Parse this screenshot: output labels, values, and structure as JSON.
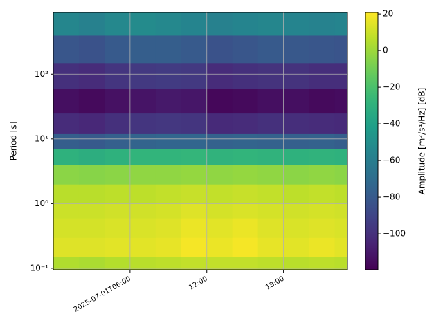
{
  "chart_data": {
    "type": "heatmap",
    "y_label": "Period [s]",
    "colorbar_label": "Amplitude [m²/s⁴/Hz] [dB]",
    "colormap": "viridis",
    "log_y": true,
    "grid": true,
    "x_bins": [
      "2025-07-01T00:00",
      "2025-07-01T02:00",
      "2025-07-01T04:00",
      "2025-07-01T06:00",
      "2025-07-01T08:00",
      "2025-07-01T10:00",
      "2025-07-01T12:00",
      "2025-07-01T14:00",
      "2025-07-01T16:00",
      "2025-07-01T18:00",
      "2025-07-01T20:00",
      "2025-07-01T22:00",
      "2025-07-01T23:00"
    ],
    "y_bins": [
      0.095,
      0.15,
      0.3,
      0.6,
      1,
      2,
      4,
      7,
      12,
      25,
      60,
      150,
      400,
      900
    ],
    "z": [
      [
        4,
        3,
        5,
        6,
        7,
        8,
        8,
        8,
        7,
        6,
        7,
        6
      ],
      [
        14,
        14,
        15,
        15,
        16,
        19,
        17,
        19,
        16,
        15,
        17,
        15
      ],
      [
        12,
        12,
        13,
        13,
        14,
        17,
        15,
        17,
        14,
        13,
        14,
        13
      ],
      [
        10,
        10,
        11,
        11,
        12,
        14,
        12,
        13,
        12,
        11,
        12,
        11
      ],
      [
        6,
        6,
        7,
        7,
        8,
        9,
        8,
        9,
        8,
        7,
        8,
        7
      ],
      [
        -4,
        -5,
        -4,
        -3,
        -3,
        -2,
        -3,
        -2,
        -3,
        -4,
        -3,
        -4
      ],
      [
        -30,
        -32,
        -30,
        -28,
        -28,
        -27,
        -29,
        -28,
        -29,
        -30,
        -29,
        -30
      ],
      [
        -78,
        -80,
        -77,
        -75,
        -74,
        -74,
        -76,
        -75,
        -76,
        -77,
        -76,
        -78
      ],
      [
        -102,
        -104,
        -100,
        -98,
        -97,
        -98,
        -103,
        -102,
        -100,
        -101,
        -102,
        -103
      ],
      [
        -114,
        -116,
        -113,
        -112,
        -110,
        -111,
        -117,
        -116,
        -114,
        -114,
        -116,
        -115
      ],
      [
        -100,
        -102,
        -98,
        -96,
        -95,
        -96,
        -102,
        -100,
        -99,
        -99,
        -101,
        -101
      ],
      [
        -82,
        -84,
        -80,
        -78,
        -78,
        -80,
        -84,
        -82,
        -80,
        -81,
        -82,
        -83
      ],
      [
        -55,
        -58,
        -54,
        -52,
        -54,
        -56,
        -58,
        -56,
        -55,
        -56,
        -57,
        -56
      ]
    ],
    "xlim": [
      "2025-07-01T00:00",
      "2025-07-01T23:00"
    ],
    "xticks": [
      "2025-07-01T06:00",
      {
        "value": "2025-07-01T12:00",
        "label": "12:00"
      },
      {
        "value": "2025-07-01T18:00",
        "label": "18:00"
      }
    ],
    "ylim": [
      0.095,
      900
    ],
    "yticks": [
      {
        "value": 0.1,
        "label": "10⁻¹"
      },
      {
        "value": 1,
        "label": "10⁰"
      },
      {
        "value": 10,
        "label": "10¹"
      },
      {
        "value": 100,
        "label": "10²"
      }
    ],
    "clim": [
      -119.6,
      20.8
    ],
    "cticks": [
      {
        "value": -100,
        "label": "−100"
      },
      {
        "value": -80,
        "label": "−80"
      },
      {
        "value": -60,
        "label": "−60"
      },
      {
        "value": -40,
        "label": "−40"
      },
      {
        "value": -20,
        "label": "−20"
      },
      0,
      20
    ]
  }
}
